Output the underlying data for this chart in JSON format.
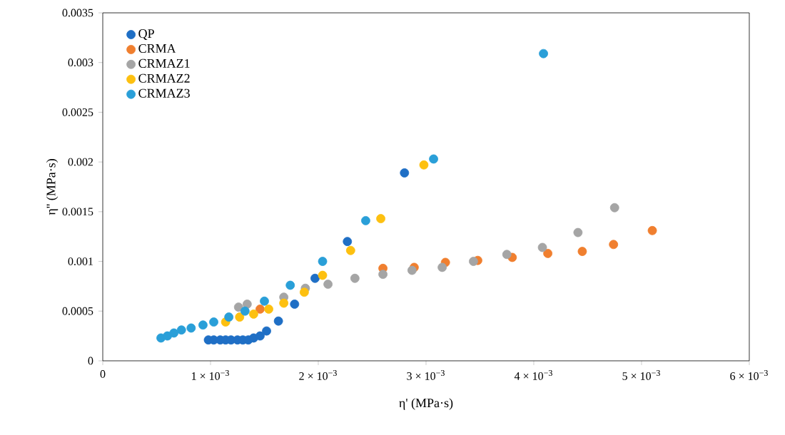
{
  "chart_data": {
    "type": "scatter",
    "xlabel": "η' (MPa·s)",
    "ylabel": "η'' (MPa·s)",
    "marker": "circle",
    "legend": "top left",
    "grid": false,
    "xlim": [
      0,
      0.006
    ],
    "ylim": [
      0,
      0.0035
    ],
    "xticks": [
      {
        "value": 0,
        "label": "0"
      },
      {
        "value": 0.001,
        "label": "1 × 10$^{−3}$"
      },
      {
        "value": 0.002,
        "label": "2 × 10$^{−3}$"
      },
      {
        "value": 0.003,
        "label": "3 × 10$^{−3}$"
      },
      {
        "value": 0.004,
        "label": "4 × 10$^{−3}$"
      },
      {
        "value": 0.005,
        "label": "5 × 10$^{−3}$"
      },
      {
        "value": 0.006,
        "label": "6 × 10$^{−3}$"
      }
    ],
    "yticks": [
      0,
      0.0005,
      0.001,
      0.0015,
      0.002,
      0.0025,
      0.003,
      0.0035
    ],
    "series": [
      {
        "name": "QP",
        "color": "#1f6fc5",
        "x": [
          0.00098,
          0.00103,
          0.00109,
          0.00114,
          0.00119,
          0.00125,
          0.0013,
          0.00135,
          0.0014,
          0.00146,
          0.00152,
          0.00163,
          0.00178,
          0.00197,
          0.00227,
          0.0028
        ],
        "values": [
          0.00021,
          0.00021,
          0.00021,
          0.00021,
          0.00021,
          0.00021,
          0.00021,
          0.00021,
          0.00023,
          0.00025,
          0.0003,
          0.0004,
          0.00057,
          0.00083,
          0.0012,
          0.00189
        ]
      },
      {
        "name": "CRMA",
        "color": "#f07f2f",
        "x": [
          0.00146,
          0.0026,
          0.00289,
          0.00318,
          0.00348,
          0.0038,
          0.00413,
          0.00445,
          0.00474,
          0.0051
        ],
        "values": [
          0.00052,
          0.00093,
          0.00094,
          0.00099,
          0.00101,
          0.00104,
          0.00108,
          0.0011,
          0.00117,
          0.00131
        ]
      },
      {
        "name": "CRMAZ1",
        "color": "#a5a5a5",
        "x": [
          0.00126,
          0.00134,
          0.00168,
          0.00188,
          0.00209,
          0.00234,
          0.0026,
          0.00287,
          0.00315,
          0.00344,
          0.00375,
          0.00408,
          0.00441,
          0.00475
        ],
        "values": [
          0.00054,
          0.00057,
          0.00064,
          0.00073,
          0.00077,
          0.00083,
          0.00087,
          0.00091,
          0.00094,
          0.001,
          0.00107,
          0.00114,
          0.00129,
          0.00154
        ]
      },
      {
        "name": "CRMAZ2",
        "color": "#fdc010",
        "x": [
          0.00114,
          0.00127,
          0.0014,
          0.00154,
          0.00168,
          0.00187,
          0.00204,
          0.0023,
          0.00258,
          0.00298
        ],
        "values": [
          0.00039,
          0.00044,
          0.00047,
          0.00052,
          0.00058,
          0.00069,
          0.00086,
          0.00111,
          0.00143,
          0.00197
        ]
      },
      {
        "name": "CRMAZ3",
        "color": "#2a9fd8",
        "x": [
          0.00054,
          0.0006,
          0.00066,
          0.00073,
          0.00082,
          0.00093,
          0.00103,
          0.00117,
          0.00132,
          0.0015,
          0.00174,
          0.00204,
          0.00244,
          0.00307,
          0.00409
        ],
        "values": [
          0.00023,
          0.00025,
          0.00028,
          0.00031,
          0.00033,
          0.00036,
          0.00039,
          0.00044,
          0.0005,
          0.0006,
          0.00076,
          0.001,
          0.00141,
          0.00203,
          0.00309
        ]
      }
    ]
  }
}
